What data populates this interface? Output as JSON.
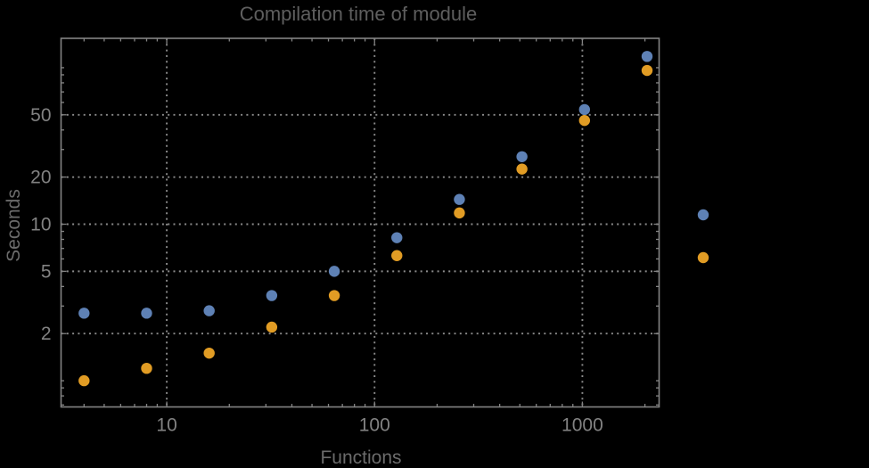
{
  "chart": {
    "title": "Compilation time of module",
    "xlabel": "Functions",
    "ylabel": "Seconds"
  },
  "colors": {
    "background": "#000000",
    "frame": "#848484",
    "grid": "#8b8b8b",
    "title_text": "#5e5e5e",
    "axis_label_text": "#6b6b6b",
    "tick_label_text": "#828282",
    "series_blue": "#5E81B5",
    "series_orange": "#E19C24"
  },
  "chart_data": {
    "type": "scatter",
    "title": "Compilation time of module",
    "xlabel": "Functions",
    "ylabel": "Seconds",
    "x_scale": "log",
    "y_scale": "log",
    "xlim": [
      3.1,
      2340
    ],
    "ylim": [
      0.68,
      154
    ],
    "grid": "dotted gridlines at major ticks only",
    "x": [
      4,
      8,
      16,
      32,
      64,
      128,
      256,
      512,
      1024,
      2048
    ],
    "series": [
      {
        "name": "series-1-blue",
        "color": "#5E81B5",
        "values": [
          2.7,
          2.7,
          2.8,
          3.5,
          5.0,
          8.2,
          14.4,
          27,
          54,
          118
        ]
      },
      {
        "name": "series-2-orange",
        "color": "#E19C24",
        "values": [
          1.0,
          1.2,
          1.5,
          2.2,
          3.5,
          6.3,
          11.8,
          22.5,
          46,
          96
        ]
      }
    ],
    "x_ticks": [
      {
        "value": 10,
        "label": "10"
      },
      {
        "value": 100,
        "label": "100"
      },
      {
        "value": 1000,
        "label": "1000"
      }
    ],
    "y_ticks": [
      {
        "value": 2,
        "label": "2"
      },
      {
        "value": 5,
        "label": "5"
      },
      {
        "value": 10,
        "label": "10"
      },
      {
        "value": 20,
        "label": "20"
      },
      {
        "value": 50,
        "label": "50"
      }
    ],
    "legend": {
      "position": "right-of-plot",
      "labels_visible": false,
      "items": [
        {
          "marker_color": "#5E81B5"
        },
        {
          "marker_color": "#E19C24"
        }
      ]
    }
  }
}
